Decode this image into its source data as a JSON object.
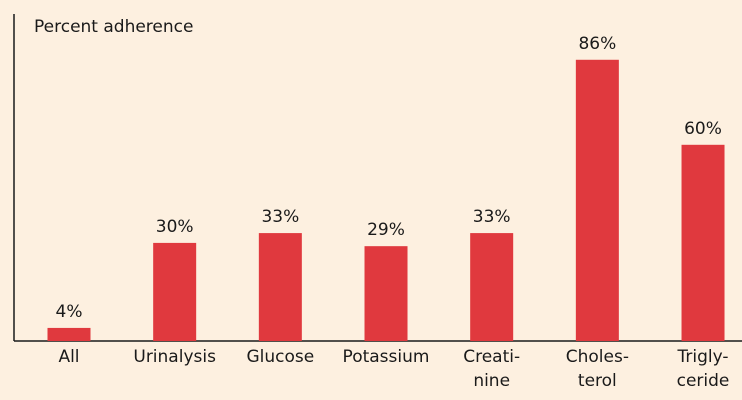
{
  "chart_data": {
    "type": "bar",
    "y_label": "Percent adherence",
    "categories": [
      [
        "All"
      ],
      [
        "Urinalysis"
      ],
      [
        "Glucose"
      ],
      [
        "Potassium"
      ],
      [
        "Creati-",
        "nine"
      ],
      [
        "Choles-",
        "terol"
      ],
      [
        "Trigly-",
        "ceride"
      ]
    ],
    "values": [
      4,
      30,
      33,
      29,
      33,
      86,
      60
    ],
    "value_labels": [
      "4%",
      "30%",
      "33%",
      "29%",
      "33%",
      "86%",
      "60%"
    ],
    "color": "#e0393e",
    "ylim": [
      0,
      100
    ]
  }
}
